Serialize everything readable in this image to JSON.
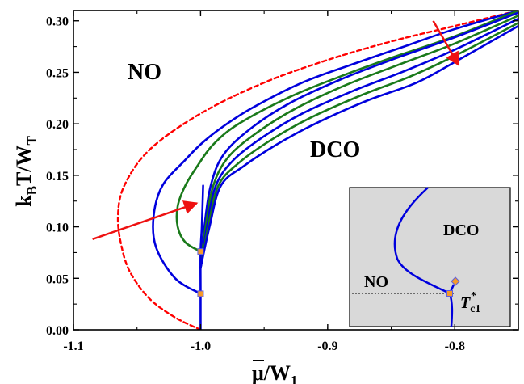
{
  "chart_data": {
    "type": "line",
    "title": "",
    "xlabel": {
      "main": "μ",
      "overbar": true,
      "sep": "/W",
      "sub": "1"
    },
    "ylabel": {
      "pre": "k",
      "sub1": "B",
      "mid": "T/W",
      "sub2": "T"
    },
    "xlim": [
      -1.1,
      -0.75
    ],
    "ylim": [
      0,
      0.31
    ],
    "xticks": [
      -1.1,
      -1.0,
      -0.9,
      -0.8
    ],
    "xtick_labels": [
      "-1.1",
      "-1.0",
      "-0.9",
      "-0.8"
    ],
    "yticks": [
      0.0,
      0.05,
      0.1,
      0.15,
      0.2,
      0.25,
      0.3
    ],
    "ytick_labels": [
      "0.00",
      "0.05",
      "0.10",
      "0.15",
      "0.20",
      "0.25",
      "0.30"
    ],
    "grid": false,
    "region_labels": [
      {
        "text": "NO",
        "x": -1.062,
        "y": 0.25
      },
      {
        "text": "DCO",
        "x": -0.921,
        "y": 0.176
      }
    ],
    "series": [
      {
        "style": "red-dashed",
        "color": "#ff0000",
        "x": [
          -1.0,
          -1.02,
          -1.04,
          -1.055,
          -1.062,
          -1.065,
          -1.06,
          -1.04,
          -1.0,
          -0.95,
          -0.9,
          -0.85,
          -0.8,
          -0.75
        ],
        "y": [
          0.0,
          0.012,
          0.03,
          0.055,
          0.08,
          0.11,
          0.14,
          0.175,
          0.21,
          0.24,
          0.262,
          0.28,
          0.295,
          0.31
        ]
      },
      {
        "style": "blue",
        "color": "#0000dd",
        "x": [
          -1.0,
          -1.02,
          -1.035,
          -1.037,
          -1.03,
          -1.012,
          -1.0,
          -0.985,
          -0.96,
          -0.92,
          -0.88,
          -0.84,
          -0.8,
          -0.75
        ],
        "y": [
          0.035,
          0.05,
          0.08,
          0.11,
          0.14,
          0.165,
          0.18,
          0.195,
          0.215,
          0.24,
          0.258,
          0.275,
          0.292,
          0.31
        ]
      },
      {
        "style": "green",
        "color": "#1a7a1a",
        "x": [
          -1.0,
          -1.012,
          -1.018,
          -1.018,
          -1.012,
          -1.002,
          -0.99,
          -0.97,
          -0.93,
          -0.89,
          -0.85,
          -0.8,
          -0.75
        ],
        "y": [
          0.076,
          0.085,
          0.1,
          0.12,
          0.14,
          0.16,
          0.18,
          0.2,
          0.226,
          0.246,
          0.264,
          0.285,
          0.31
        ]
      },
      {
        "style": "blue",
        "color": "#0000dd",
        "x": [
          -1.0,
          -0.997,
          -0.992,
          -0.982,
          -0.96,
          -0.93,
          -0.89,
          -0.85,
          -0.8,
          -0.75
        ],
        "y": [
          0.06,
          0.1,
          0.14,
          0.17,
          0.196,
          0.22,
          0.243,
          0.262,
          0.284,
          0.308
        ]
      },
      {
        "style": "green",
        "color": "#1a7a1a",
        "x": [
          -1.0,
          -0.996,
          -0.99,
          -0.978,
          -0.955,
          -0.925,
          -0.885,
          -0.845,
          -0.8,
          -0.75
        ],
        "y": [
          0.06,
          0.1,
          0.14,
          0.168,
          0.192,
          0.215,
          0.238,
          0.257,
          0.278,
          0.305
        ]
      },
      {
        "style": "blue",
        "color": "#0000dd",
        "x": [
          -1.0,
          -0.995,
          -0.988,
          -0.974,
          -0.95,
          -0.92,
          -0.88,
          -0.84,
          -0.8,
          -0.75
        ],
        "y": [
          0.06,
          0.1,
          0.14,
          0.165,
          0.188,
          0.21,
          0.232,
          0.251,
          0.272,
          0.302
        ]
      },
      {
        "style": "green",
        "color": "#1a7a1a",
        "x": [
          -1.0,
          -0.994,
          -0.986,
          -0.97,
          -0.945,
          -0.915,
          -0.875,
          -0.835,
          -0.8,
          -0.75
        ],
        "y": [
          0.06,
          0.1,
          0.14,
          0.162,
          0.184,
          0.205,
          0.227,
          0.246,
          0.266,
          0.298
        ]
      },
      {
        "style": "blue",
        "color": "#0000dd",
        "x": [
          -1.0,
          -0.993,
          -0.984,
          -0.966,
          -0.94,
          -0.91,
          -0.87,
          -0.83,
          -0.8,
          -0.75
        ],
        "y": [
          0.06,
          0.1,
          0.14,
          0.159,
          0.18,
          0.2,
          0.222,
          0.24,
          0.26,
          0.295
        ]
      },
      {
        "style": "blue-vertical",
        "color": "#0000dd",
        "x": [
          -1.0,
          -1.0,
          -1.0,
          -0.999,
          -0.998
        ],
        "y": [
          0.0,
          0.035,
          0.076,
          0.1,
          0.14
        ]
      }
    ],
    "points": [
      {
        "x": -1.0,
        "y": 0.035,
        "color": "#f59a2a"
      },
      {
        "x": -1.0,
        "y": 0.076,
        "color": "#f59a2a"
      }
    ],
    "arrows": [
      {
        "from": [
          -1.085,
          0.088
        ],
        "to": [
          -1.003,
          0.123
        ],
        "color": "#ee1111"
      },
      {
        "from": [
          -0.817,
          0.3
        ],
        "to": [
          -0.797,
          0.257
        ],
        "color": "#ee1111"
      }
    ],
    "inset": {
      "background": "#d9d9d9",
      "labels": {
        "no": "NO",
        "dco": "DCO",
        "tc_main": "T",
        "tc_star": "*",
        "tc_sub": "c1"
      }
    }
  }
}
